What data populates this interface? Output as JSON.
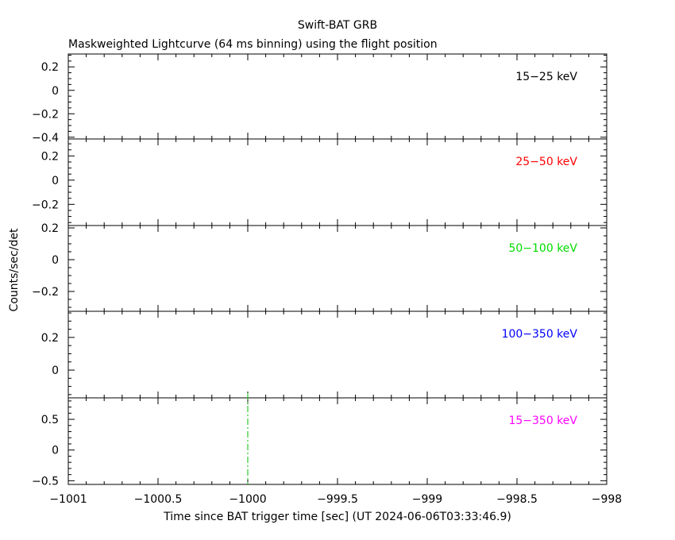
{
  "chart_data": {
    "type": "line",
    "title": "Swift-BAT GRB",
    "subtitle": "Maskweighted Lightcurve (64 ms binning) using the flight position",
    "xlabel": "Time since BAT trigger time [sec] (UT 2024-06-06T03:33:46.9)",
    "ylabel": "Counts/sec/det",
    "xlim": [
      -1001,
      -998
    ],
    "x_ticks": [
      -1001,
      -1000.5,
      -1000,
      -999.5,
      -999,
      -998.5,
      -998
    ],
    "x_tick_labels": [
      "−1001",
      "−1000.5",
      "−1000",
      "−999.5",
      "−999",
      "−998.5",
      "−998"
    ],
    "trigger_marker": {
      "x": -1000,
      "color": "#00bb00",
      "style": "dash-dot"
    },
    "panels": [
      {
        "band": "15−25 keV",
        "color": "#000000",
        "ylim": [
          -0.415,
          0.31
        ],
        "y_ticks": [
          0.2,
          0,
          -0.2,
          -0.4
        ],
        "y_tick_labels": [
          "0.2",
          "0",
          "−0.2",
          "−0.4"
        ],
        "series": []
      },
      {
        "band": "25−50 keV",
        "color": "#ff0000",
        "ylim": [
          -0.375,
          0.34
        ],
        "y_ticks": [
          0.2,
          0,
          -0.2
        ],
        "y_tick_labels": [
          "0.2",
          "0",
          "−0.2"
        ],
        "series": []
      },
      {
        "band": "50−100 keV",
        "color": "#00dd00",
        "ylim": [
          -0.325,
          0.215
        ],
        "y_ticks": [
          0.2,
          0,
          -0.2
        ],
        "y_tick_labels": [
          "0.2",
          "0",
          "−0.2"
        ],
        "series": []
      },
      {
        "band": "100−350 keV",
        "color": "#0000ff",
        "ylim": [
          -0.17,
          0.36
        ],
        "y_ticks": [
          0.2,
          0
        ],
        "y_tick_labels": [
          "0.2",
          "0"
        ],
        "series": []
      },
      {
        "band": "15−350 keV",
        "color": "#ff00ff",
        "ylim": [
          -0.56,
          0.85
        ],
        "y_ticks": [
          0.5,
          0,
          -0.5
        ],
        "y_tick_labels": [
          "0.5",
          "0",
          "−0.5"
        ],
        "series": []
      }
    ]
  }
}
